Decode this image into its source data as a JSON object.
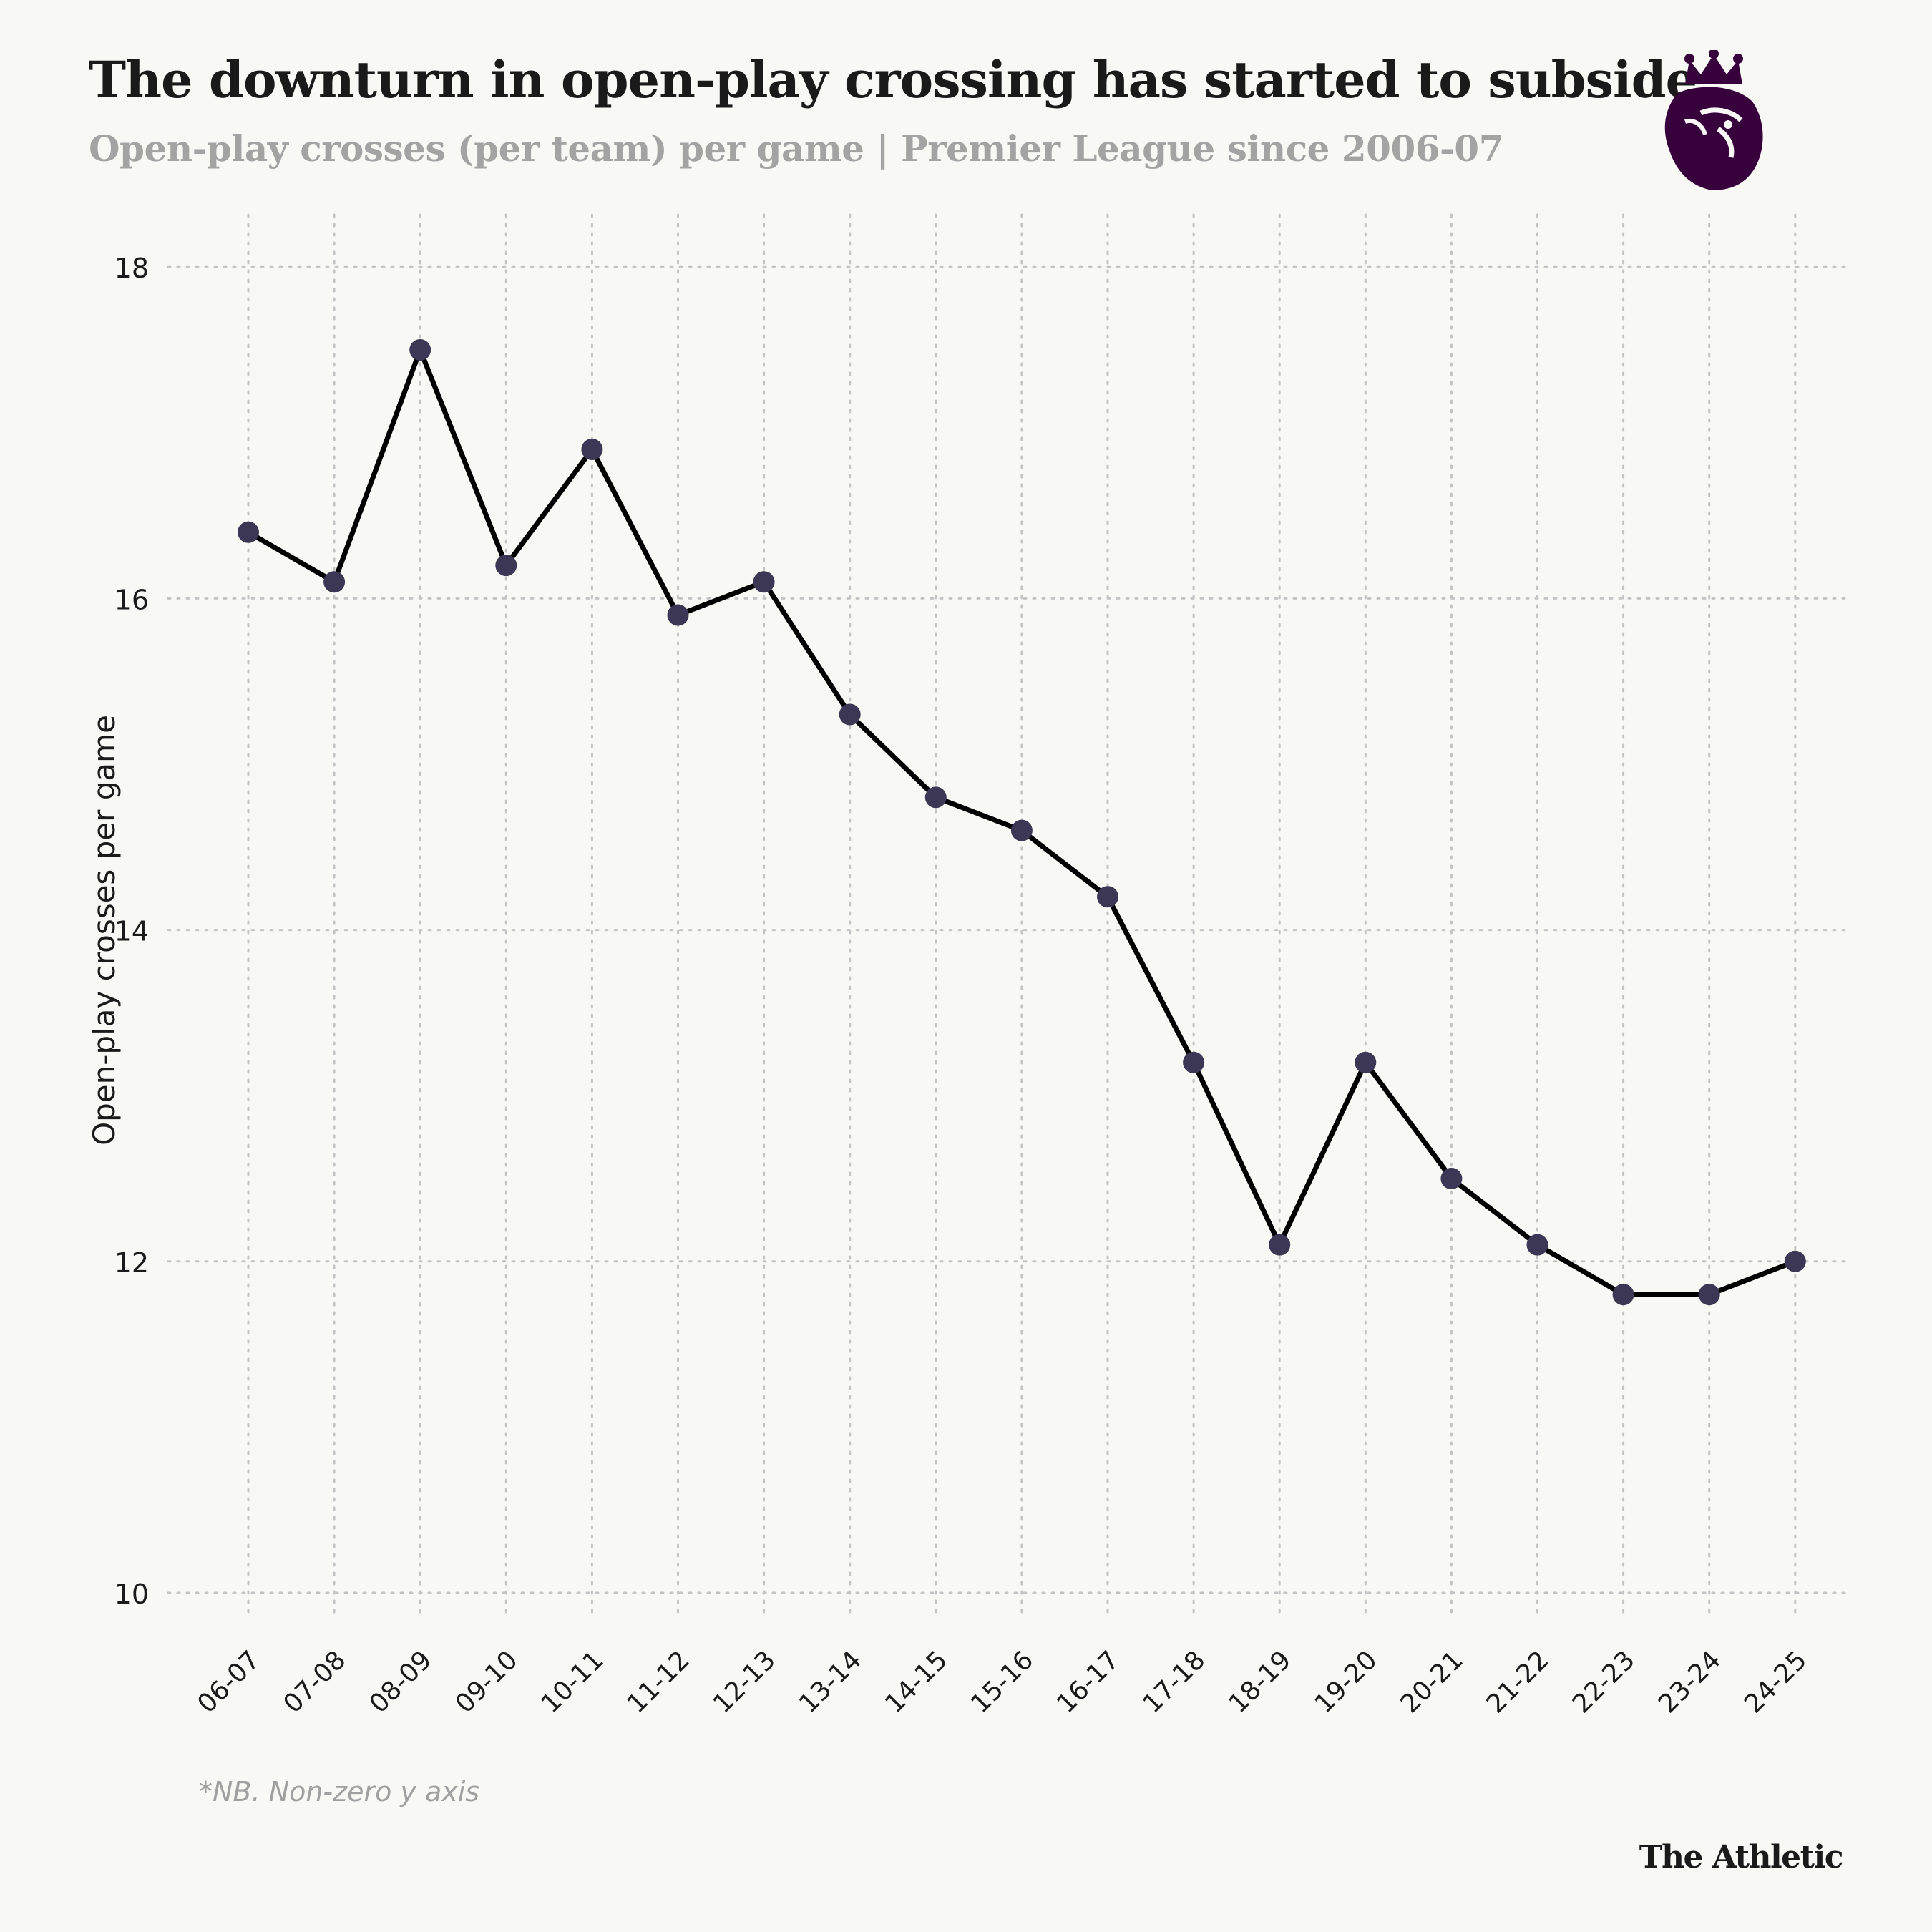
{
  "header": {
    "title": "The downturn in open-play crossing has started to subside",
    "subtitle": "Open-play crosses (per team) per game | Premier League since 2006-07"
  },
  "footer": {
    "note": "*NB. Non-zero y axis",
    "brand": "The Athletic"
  },
  "colors": {
    "line": "#000000",
    "marker": "#3b3754",
    "grid": "#c4c4c4",
    "logo": "#37003c"
  },
  "chart_data": {
    "type": "line",
    "title": "The downturn in open-play crossing has started to subside",
    "subtitle": "Open-play crosses (per team) per game | Premier League since 2006-07",
    "xlabel": "",
    "ylabel": "Open-play crosses per game",
    "ylim": [
      9.8,
      18.4
    ],
    "yticks": [
      10,
      12,
      14,
      16,
      18
    ],
    "grid": true,
    "categories": [
      "06-07",
      "07-08",
      "08-09",
      "09-10",
      "10-11",
      "11-12",
      "12-13",
      "13-14",
      "14-15",
      "15-16",
      "16-17",
      "17-18",
      "18-19",
      "19-20",
      "20-21",
      "21-22",
      "22-23",
      "23-24",
      "24-25"
    ],
    "series": [
      {
        "name": "Open-play crosses per game",
        "values": [
          16.4,
          16.1,
          17.5,
          16.2,
          16.9,
          15.9,
          16.1,
          15.3,
          14.8,
          14.6,
          14.2,
          13.2,
          12.1,
          13.2,
          12.5,
          12.1,
          11.8,
          11.8,
          12.0
        ]
      }
    ]
  }
}
